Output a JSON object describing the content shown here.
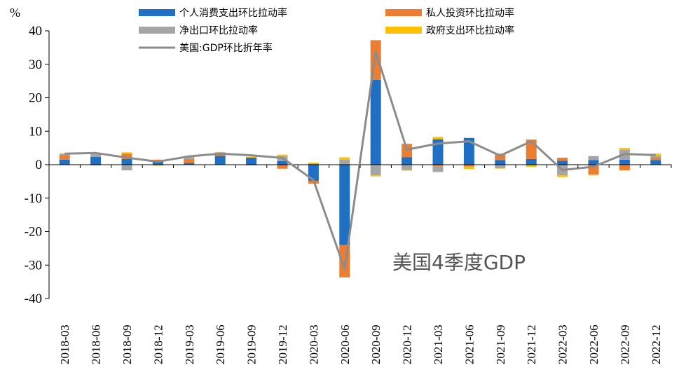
{
  "chart_data": {
    "type": "bar",
    "stacked": true,
    "unit": "%",
    "annotation": "美国4季度GDP",
    "ylim": [
      -40,
      40
    ],
    "yticks": [
      -40,
      -30,
      -20,
      -10,
      0,
      10,
      20,
      30,
      40
    ],
    "grid": false,
    "legend_position": "top",
    "categories": [
      "2018-03",
      "2018-06",
      "2018-09",
      "2018-12",
      "2019-03",
      "2019-06",
      "2019-09",
      "2019-12",
      "2020-03",
      "2020-06",
      "2020-09",
      "2020-12",
      "2021-03",
      "2021-06",
      "2021-09",
      "2021-12",
      "2022-03",
      "2022-06",
      "2022-09",
      "2022-12"
    ],
    "series": [
      {
        "name": "个人消费支出环比拉动率",
        "kind": "bar",
        "color": "#1f6fc5",
        "values": [
          1.5,
          2.3,
          1.7,
          1.0,
          0.5,
          2.6,
          2.1,
          1.1,
          -4.8,
          -24.0,
          25.4,
          2.2,
          7.6,
          8.0,
          1.4,
          1.7,
          1.2,
          1.4,
          1.5,
          1.4
        ]
      },
      {
        "name": "私人投资环比拉动率",
        "kind": "bar",
        "color": "#ed7d31",
        "values": [
          1.4,
          -0.2,
          1.6,
          0.5,
          1.2,
          0.5,
          -0.2,
          -1.2,
          -0.9,
          -9.7,
          11.8,
          4.0,
          -0.4,
          -0.5,
          1.9,
          5.8,
          0.9,
          -2.9,
          -1.7,
          0.7
        ]
      },
      {
        "name": "净出口环比拉动率",
        "kind": "bar",
        "color": "#a5a5a5",
        "values": [
          0.3,
          0.9,
          -1.7,
          -0.1,
          0.5,
          0.3,
          0.0,
          1.5,
          0.4,
          1.5,
          -3.2,
          -1.6,
          -1.8,
          -0.2,
          -1.1,
          -0.2,
          -3.2,
          1.2,
          2.9,
          0.5
        ]
      },
      {
        "name": "政府支出环比拉动率",
        "kind": "bar",
        "color": "#ffc000",
        "values": [
          0.2,
          0.4,
          0.4,
          -0.2,
          0.4,
          0.4,
          0.3,
          0.4,
          0.2,
          0.7,
          -0.3,
          -0.2,
          0.7,
          -0.6,
          -0.1,
          -0.5,
          -0.5,
          -0.3,
          0.6,
          0.7
        ]
      },
      {
        "name": "美国:GDP环比折年率",
        "kind": "line",
        "color": "#8c8c8c",
        "values": [
          3.3,
          3.5,
          2.1,
          0.9,
          2.5,
          3.3,
          2.8,
          2.0,
          -4.6,
          -31.2,
          33.8,
          4.5,
          6.3,
          7.0,
          2.7,
          7.0,
          -1.6,
          -0.6,
          3.2,
          2.9
        ]
      }
    ]
  }
}
